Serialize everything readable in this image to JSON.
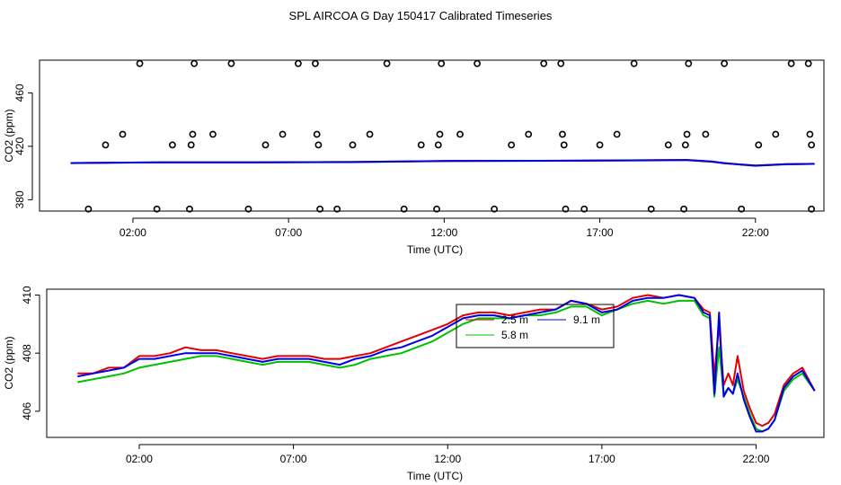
{
  "page_title": "SPL AIRCOA G  Day 150417  Calibrated Timeseries",
  "colors": {
    "red": "#e00000",
    "green": "#00c000",
    "blue": "#0000e6",
    "axis": "#000000"
  },
  "chart_data": [
    {
      "type": "scatter",
      "title": "",
      "xlabel": "Time (UTC)",
      "ylabel": "CO2 (ppm)",
      "xlim": [
        -1.0,
        24.2
      ],
      "ylim": [
        371.5,
        484.5
      ],
      "x_ticks": [
        2,
        7,
        12,
        17,
        22
      ],
      "x_tick_labels": [
        "02:00",
        "07:00",
        "12:00",
        "17:00",
        "22:00"
      ],
      "y_ticks": [
        380,
        420,
        460
      ],
      "y_tick_labels": [
        "380",
        "420",
        "460"
      ],
      "grid": false,
      "points": [
        {
          "x": 0.57,
          "y": 373
        },
        {
          "x": 1.12,
          "y": 421
        },
        {
          "x": 1.67,
          "y": 429
        },
        {
          "x": 2.22,
          "y": 482
        },
        {
          "x": 2.77,
          "y": 373
        },
        {
          "x": 3.27,
          "y": 421
        },
        {
          "x": 3.82,
          "y": 373
        },
        {
          "x": 3.87,
          "y": 421
        },
        {
          "x": 3.92,
          "y": 429
        },
        {
          "x": 3.97,
          "y": 482
        },
        {
          "x": 4.57,
          "y": 429
        },
        {
          "x": 5.16,
          "y": 482
        },
        {
          "x": 5.71,
          "y": 373
        },
        {
          "x": 6.26,
          "y": 421
        },
        {
          "x": 6.81,
          "y": 429
        },
        {
          "x": 7.31,
          "y": 482
        },
        {
          "x": 7.86,
          "y": 482
        },
        {
          "x": 7.91,
          "y": 429
        },
        {
          "x": 7.96,
          "y": 421
        },
        {
          "x": 8.01,
          "y": 373
        },
        {
          "x": 8.56,
          "y": 373
        },
        {
          "x": 9.06,
          "y": 421
        },
        {
          "x": 9.61,
          "y": 429
        },
        {
          "x": 10.16,
          "y": 482
        },
        {
          "x": 10.71,
          "y": 373
        },
        {
          "x": 11.26,
          "y": 421
        },
        {
          "x": 11.76,
          "y": 373
        },
        {
          "x": 11.81,
          "y": 421
        },
        {
          "x": 11.86,
          "y": 429
        },
        {
          "x": 11.91,
          "y": 482
        },
        {
          "x": 12.51,
          "y": 429
        },
        {
          "x": 13.06,
          "y": 482
        },
        {
          "x": 13.61,
          "y": 373
        },
        {
          "x": 14.16,
          "y": 421
        },
        {
          "x": 14.71,
          "y": 429
        },
        {
          "x": 15.2,
          "y": 482
        },
        {
          "x": 15.75,
          "y": 482
        },
        {
          "x": 15.8,
          "y": 429
        },
        {
          "x": 15.85,
          "y": 421
        },
        {
          "x": 15.9,
          "y": 373
        },
        {
          "x": 16.5,
          "y": 373
        },
        {
          "x": 17.0,
          "y": 421
        },
        {
          "x": 17.55,
          "y": 429
        },
        {
          "x": 18.1,
          "y": 482
        },
        {
          "x": 18.65,
          "y": 373
        },
        {
          "x": 19.2,
          "y": 421
        },
        {
          "x": 19.7,
          "y": 373
        },
        {
          "x": 19.75,
          "y": 421
        },
        {
          "x": 19.8,
          "y": 429
        },
        {
          "x": 19.85,
          "y": 482
        },
        {
          "x": 20.4,
          "y": 429
        },
        {
          "x": 21.0,
          "y": 482
        },
        {
          "x": 21.55,
          "y": 373
        },
        {
          "x": 22.1,
          "y": 421
        },
        {
          "x": 22.65,
          "y": 429
        },
        {
          "x": 23.15,
          "y": 482
        },
        {
          "x": 23.7,
          "y": 482
        },
        {
          "x": 23.75,
          "y": 429
        },
        {
          "x": 23.8,
          "y": 421
        },
        {
          "x": 23.8,
          "y": 373
        }
      ],
      "series": [
        {
          "color": "red",
          "x": [
            0.0,
            3,
            6,
            9,
            12,
            15,
            18,
            19.8,
            20.6,
            21.0,
            21.5,
            22.0,
            23.0,
            23.9
          ],
          "values": [
            407.5,
            408.0,
            408.0,
            408.2,
            409.0,
            409.2,
            409.5,
            409.8,
            408.5,
            407.2,
            406.5,
            405.6,
            406.6,
            406.8
          ]
        },
        {
          "color": "green",
          "x": [
            0.0,
            3,
            6,
            9,
            12,
            15,
            18,
            19.8,
            20.6,
            21.0,
            21.5,
            22.0,
            23.0,
            23.9
          ],
          "values": [
            407.5,
            408.0,
            408.0,
            408.1,
            408.9,
            409.1,
            409.4,
            409.6,
            408.3,
            407.5,
            406.3,
            405.4,
            406.5,
            406.8
          ]
        },
        {
          "color": "blue",
          "x": [
            0.0,
            3,
            6,
            9,
            12,
            15,
            18,
            19.8,
            20.6,
            21.0,
            21.5,
            22.0,
            23.0,
            23.9
          ],
          "values": [
            407.4,
            408.0,
            408.0,
            408.2,
            409.0,
            409.2,
            409.5,
            409.8,
            408.6,
            407.4,
            406.4,
            405.5,
            406.6,
            406.9
          ]
        }
      ]
    },
    {
      "type": "line",
      "title": "",
      "xlabel": "Time (UTC)",
      "ylabel": "CO2 (ppm)",
      "xlim": [
        -1.0,
        24.2
      ],
      "ylim": [
        405.1,
        410.2
      ],
      "x_ticks": [
        2,
        7,
        12,
        17,
        22
      ],
      "x_tick_labels": [
        "02:00",
        "07:00",
        "12:00",
        "17:00",
        "22:00"
      ],
      "y_ticks": [
        406,
        408,
        410
      ],
      "y_tick_labels": [
        "406",
        "408",
        "410"
      ],
      "grid": false,
      "legend": {
        "position": "top-center",
        "entries": [
          {
            "label": "2.5 m",
            "color": "red"
          },
          {
            "label": "5.8 m",
            "color": "green"
          },
          {
            "label": "9.1 m",
            "color": "blue"
          }
        ]
      },
      "series": [
        {
          "name": "2.5 m",
          "color": "red",
          "x": [
            0.0,
            0.5,
            1.0,
            1.5,
            2.0,
            2.5,
            3.0,
            3.5,
            4.0,
            4.5,
            5.0,
            5.5,
            6.0,
            6.5,
            7.0,
            7.5,
            8.0,
            8.5,
            9.0,
            9.5,
            10.0,
            10.5,
            11.0,
            11.5,
            12.0,
            12.5,
            13.0,
            13.5,
            14.0,
            14.5,
            15.0,
            15.5,
            16.0,
            16.5,
            17.0,
            17.5,
            18.0,
            18.5,
            19.0,
            19.5,
            20.0,
            20.3,
            20.5,
            20.65,
            20.8,
            20.95,
            21.1,
            21.25,
            21.4,
            21.6,
            21.8,
            22.0,
            22.2,
            22.4,
            22.6,
            22.9,
            23.2,
            23.5,
            23.9
          ],
          "values": [
            407.3,
            407.3,
            407.5,
            407.5,
            407.9,
            407.9,
            408.0,
            408.2,
            408.1,
            408.1,
            408.0,
            407.9,
            407.8,
            407.9,
            407.9,
            407.9,
            407.8,
            407.8,
            407.9,
            408.0,
            408.2,
            408.4,
            408.6,
            408.8,
            409.0,
            409.3,
            409.4,
            409.4,
            409.3,
            409.4,
            409.5,
            409.5,
            409.8,
            409.7,
            409.5,
            409.6,
            409.9,
            410.0,
            409.9,
            410.0,
            409.9,
            409.5,
            409.4,
            407.2,
            409.0,
            406.9,
            407.3,
            406.9,
            407.9,
            406.7,
            406.1,
            405.6,
            405.5,
            405.6,
            405.9,
            406.9,
            407.3,
            407.5,
            406.7
          ]
        },
        {
          "name": "5.8 m",
          "color": "green",
          "x": [
            0.0,
            0.5,
            1.0,
            1.5,
            2.0,
            2.5,
            3.0,
            3.5,
            4.0,
            4.5,
            5.0,
            5.5,
            6.0,
            6.5,
            7.0,
            7.5,
            8.0,
            8.5,
            9.0,
            9.5,
            10.0,
            10.5,
            11.0,
            11.5,
            12.0,
            12.5,
            13.0,
            13.5,
            14.0,
            14.5,
            15.0,
            15.5,
            16.0,
            16.5,
            17.0,
            17.5,
            18.0,
            18.5,
            19.0,
            19.5,
            20.0,
            20.3,
            20.5,
            20.65,
            20.8,
            20.95,
            21.1,
            21.25,
            21.4,
            21.6,
            21.8,
            22.0,
            22.2,
            22.4,
            22.6,
            22.9,
            23.2,
            23.5,
            23.9
          ],
          "values": [
            407.0,
            407.1,
            407.2,
            407.3,
            407.5,
            407.6,
            407.7,
            407.8,
            407.9,
            407.9,
            407.8,
            407.7,
            407.6,
            407.7,
            407.7,
            407.7,
            407.6,
            407.5,
            407.6,
            407.8,
            407.9,
            408.0,
            408.2,
            408.4,
            408.7,
            409.0,
            409.2,
            409.2,
            409.2,
            409.3,
            409.3,
            409.4,
            409.6,
            409.6,
            409.3,
            409.5,
            409.7,
            409.8,
            409.7,
            409.8,
            409.8,
            409.3,
            409.2,
            406.5,
            408.2,
            406.6,
            406.8,
            406.6,
            407.1,
            406.5,
            405.9,
            405.4,
            405.3,
            405.4,
            405.7,
            406.7,
            407.1,
            407.3,
            406.7
          ]
        },
        {
          "name": "9.1 m",
          "color": "blue",
          "x": [
            0.0,
            0.5,
            1.0,
            1.5,
            2.0,
            2.5,
            3.0,
            3.5,
            4.0,
            4.5,
            5.0,
            5.5,
            6.0,
            6.5,
            7.0,
            7.5,
            8.0,
            8.5,
            9.0,
            9.5,
            10.0,
            10.5,
            11.0,
            11.5,
            12.0,
            12.5,
            13.0,
            13.5,
            14.0,
            14.5,
            15.0,
            15.5,
            16.0,
            16.5,
            17.0,
            17.5,
            18.0,
            18.5,
            19.0,
            19.5,
            20.0,
            20.3,
            20.5,
            20.65,
            20.8,
            20.95,
            21.1,
            21.25,
            21.4,
            21.6,
            21.8,
            22.0,
            22.2,
            22.4,
            22.6,
            22.9,
            23.2,
            23.5,
            23.9
          ],
          "values": [
            407.2,
            407.3,
            407.4,
            407.5,
            407.8,
            407.8,
            407.9,
            408.0,
            408.0,
            408.0,
            407.9,
            407.8,
            407.7,
            407.8,
            407.8,
            407.8,
            407.7,
            407.6,
            407.8,
            407.9,
            408.1,
            408.2,
            408.4,
            408.6,
            408.9,
            409.2,
            409.3,
            409.3,
            409.2,
            409.3,
            409.4,
            409.5,
            409.8,
            409.7,
            409.4,
            409.5,
            409.8,
            409.9,
            409.9,
            410.0,
            409.9,
            409.4,
            409.3,
            406.6,
            409.4,
            406.5,
            406.8,
            406.6,
            407.3,
            406.4,
            405.8,
            405.3,
            405.3,
            405.4,
            405.7,
            406.8,
            407.2,
            407.4,
            406.7
          ]
        }
      ]
    }
  ]
}
